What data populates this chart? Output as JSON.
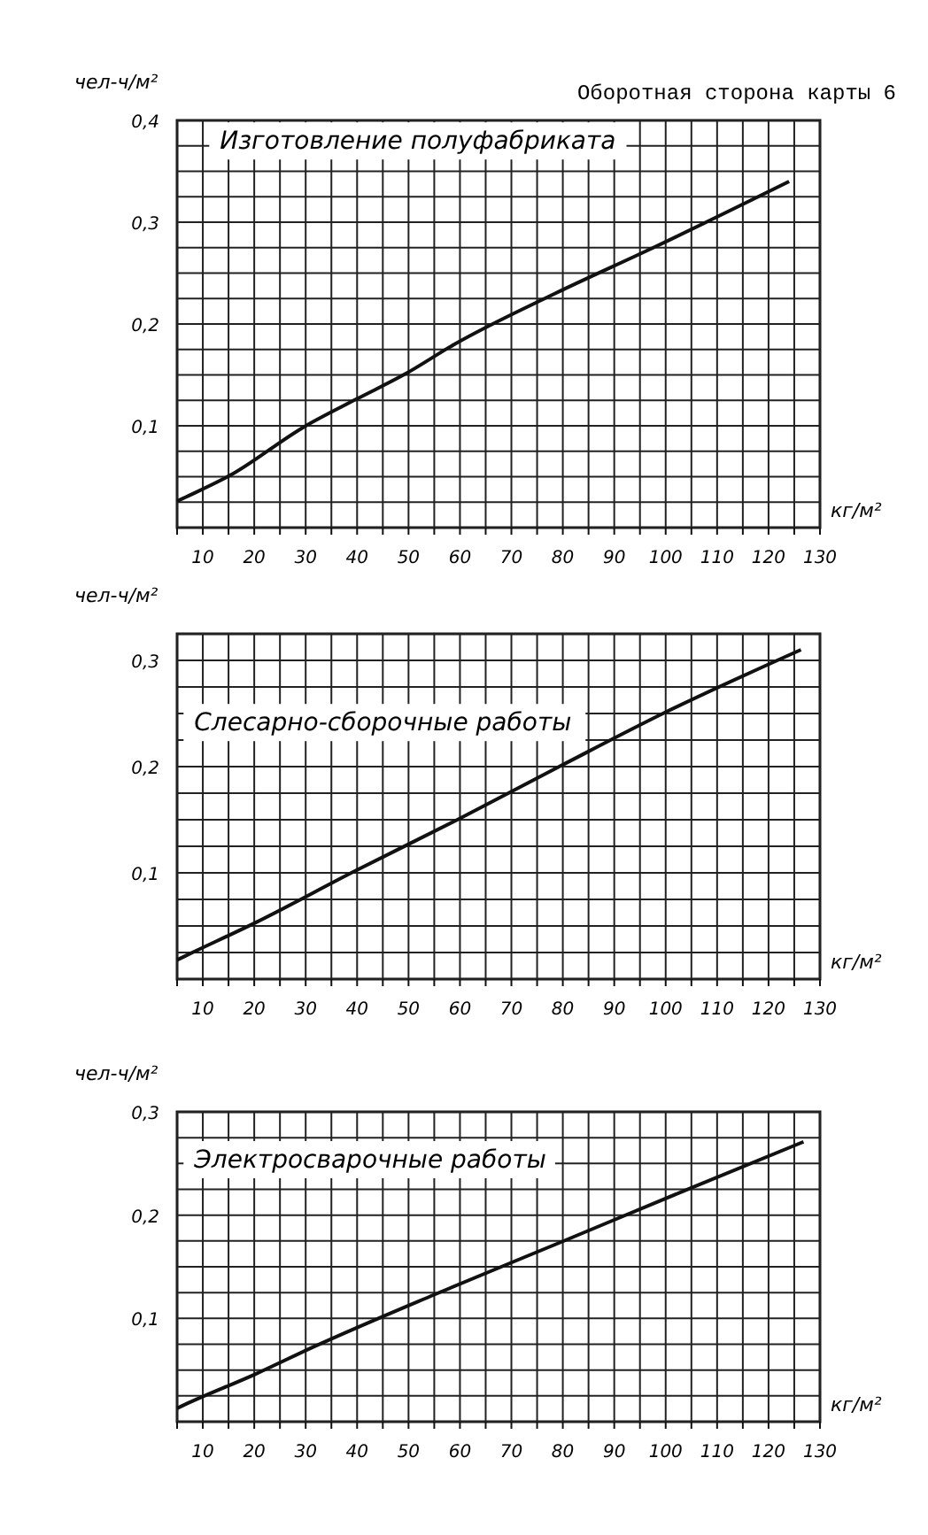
{
  "chart_data": [
    {
      "type": "line",
      "title": "Оборотная сторона карты 6",
      "ylabel": "чел-ч/м²",
      "xlabel": "кг/м²",
      "annotations": [
        "Изготовление полуфабриката"
      ],
      "series": [
        {
          "color": "#111111",
          "x": [
            5,
            6.7,
            15.2,
            29.7,
            39.8,
            49.4,
            58.9,
            78.5,
            97.6,
            124
          ],
          "values": [
            0.026,
            0.03,
            0.051,
            0.099,
            0.126,
            0.151,
            0.18,
            0.23,
            0.275,
            0.34
          ]
        }
      ],
      "xlim": [
        5,
        130
      ],
      "xticks": [
        {
          "value": 5,
          "label": null
        },
        10,
        {
          "value": 15,
          "label": null
        },
        20,
        {
          "value": 25,
          "label": null
        },
        30,
        {
          "value": 35,
          "label": null
        },
        40,
        {
          "value": 45,
          "label": null
        },
        50,
        {
          "value": 55,
          "label": null
        },
        60,
        {
          "value": 65,
          "label": null
        },
        70,
        {
          "value": 75,
          "label": null
        },
        80,
        {
          "value": 85,
          "label": null
        },
        90,
        {
          "value": 95,
          "label": null
        },
        100,
        {
          "value": 105,
          "label": null
        },
        110,
        {
          "value": 115,
          "label": null
        },
        120,
        {
          "value": 125,
          "label": null
        },
        130
      ],
      "ylim": [
        0,
        0.4
      ],
      "yticks": [
        {
          "value": 0,
          "label": null
        },
        {
          "value": 0.025,
          "label": null
        },
        {
          "value": 0.05,
          "label": null
        },
        {
          "value": 0.075,
          "label": null
        },
        {
          "value": 0.1,
          "label": "0,1"
        },
        {
          "value": 0.125,
          "label": null
        },
        {
          "value": 0.15,
          "label": null
        },
        {
          "value": 0.175,
          "label": null
        },
        {
          "value": 0.2,
          "label": "0,2"
        },
        {
          "value": 0.225,
          "label": null
        },
        {
          "value": 0.25,
          "label": null
        },
        {
          "value": 0.275,
          "label": null
        },
        {
          "value": 0.3,
          "label": "0,3"
        },
        {
          "value": 0.325,
          "label": null
        },
        {
          "value": 0.35,
          "label": null
        },
        {
          "value": 0.375,
          "label": null
        },
        {
          "value": 0.4,
          "label": "0,4"
        }
      ],
      "grid": true,
      "line_style": "solid",
      "marker": "none"
    },
    {
      "type": "line",
      "ylabel": "чел-ч/м²",
      "xlabel": "кг/м²",
      "annotations": [
        "Слесарно-сборочные работы"
      ],
      "series": [
        {
          "color": "#111111",
          "x": [
            5,
            6.7,
            20.2,
            39.3,
            59.5,
            79.7,
            99.9,
            126.3
          ],
          "values": [
            0.018,
            0.022,
            0.053,
            0.101,
            0.15,
            0.201,
            0.251,
            0.31
          ]
        }
      ],
      "xlim": [
        5,
        130
      ],
      "xticks": [
        {
          "value": 5,
          "label": null
        },
        10,
        {
          "value": 15,
          "label": null
        },
        20,
        {
          "value": 25,
          "label": null
        },
        30,
        {
          "value": 35,
          "label": null
        },
        40,
        {
          "value": 45,
          "label": null
        },
        50,
        {
          "value": 55,
          "label": null
        },
        60,
        {
          "value": 65,
          "label": null
        },
        70,
        {
          "value": 75,
          "label": null
        },
        80,
        {
          "value": 85,
          "label": null
        },
        90,
        {
          "value": 95,
          "label": null
        },
        100,
        {
          "value": 105,
          "label": null
        },
        110,
        {
          "value": 115,
          "label": null
        },
        120,
        {
          "value": 125,
          "label": null
        },
        130
      ],
      "ylim": [
        0,
        0.325
      ],
      "yticks": [
        {
          "value": 0,
          "label": null
        },
        {
          "value": 0.025,
          "label": null
        },
        {
          "value": 0.05,
          "label": null
        },
        {
          "value": 0.075,
          "label": null
        },
        {
          "value": 0.1,
          "label": "0,1"
        },
        {
          "value": 0.125,
          "label": null
        },
        {
          "value": 0.15,
          "label": null
        },
        {
          "value": 0.175,
          "label": null
        },
        {
          "value": 0.2,
          "label": "0,2"
        },
        {
          "value": 0.225,
          "label": null
        },
        {
          "value": 0.25,
          "label": null
        },
        {
          "value": 0.275,
          "label": null
        },
        {
          "value": 0.3,
          "label": "0,3"
        },
        {
          "value": 0.325,
          "label": null
        }
      ],
      "grid": true,
      "line_style": "solid",
      "marker": "none"
    },
    {
      "type": "line",
      "ylabel": "чел-ч/м²",
      "xlabel": "кг/м²",
      "annotations": [
        "Электросварочные работы"
      ],
      "series": [
        {
          "color": "#111111",
          "x": [
            5,
            6.7,
            20.2,
            30.9,
            55,
            79.7,
            103.3,
            126.8
          ],
          "values": [
            0.013,
            0.017,
            0.046,
            0.071,
            0.123,
            0.174,
            0.223,
            0.271
          ]
        }
      ],
      "xlim": [
        5,
        130
      ],
      "xticks": [
        {
          "value": 5,
          "label": null
        },
        10,
        {
          "value": 15,
          "label": null
        },
        20,
        {
          "value": 25,
          "label": null
        },
        30,
        {
          "value": 35,
          "label": null
        },
        40,
        {
          "value": 45,
          "label": null
        },
        50,
        {
          "value": 55,
          "label": null
        },
        60,
        {
          "value": 65,
          "label": null
        },
        70,
        {
          "value": 75,
          "label": null
        },
        80,
        {
          "value": 85,
          "label": null
        },
        90,
        {
          "value": 95,
          "label": null
        },
        100,
        {
          "value": 105,
          "label": null
        },
        110,
        {
          "value": 115,
          "label": null
        },
        120,
        {
          "value": 125,
          "label": null
        },
        130
      ],
      "ylim": [
        0,
        0.3
      ],
      "yticks": [
        {
          "value": 0,
          "label": null
        },
        {
          "value": 0.025,
          "label": null
        },
        {
          "value": 0.05,
          "label": null
        },
        {
          "value": 0.075,
          "label": null
        },
        {
          "value": 0.1,
          "label": "0,1"
        },
        {
          "value": 0.125,
          "label": null
        },
        {
          "value": 0.15,
          "label": null
        },
        {
          "value": 0.175,
          "label": null
        },
        {
          "value": 0.2,
          "label": "0,2"
        },
        {
          "value": 0.225,
          "label": null
        },
        {
          "value": 0.25,
          "label": null
        },
        {
          "value": 0.275,
          "label": null
        },
        {
          "value": 0.3,
          "label": "0,3"
        }
      ],
      "grid": true,
      "line_style": "solid",
      "marker": "none"
    }
  ]
}
